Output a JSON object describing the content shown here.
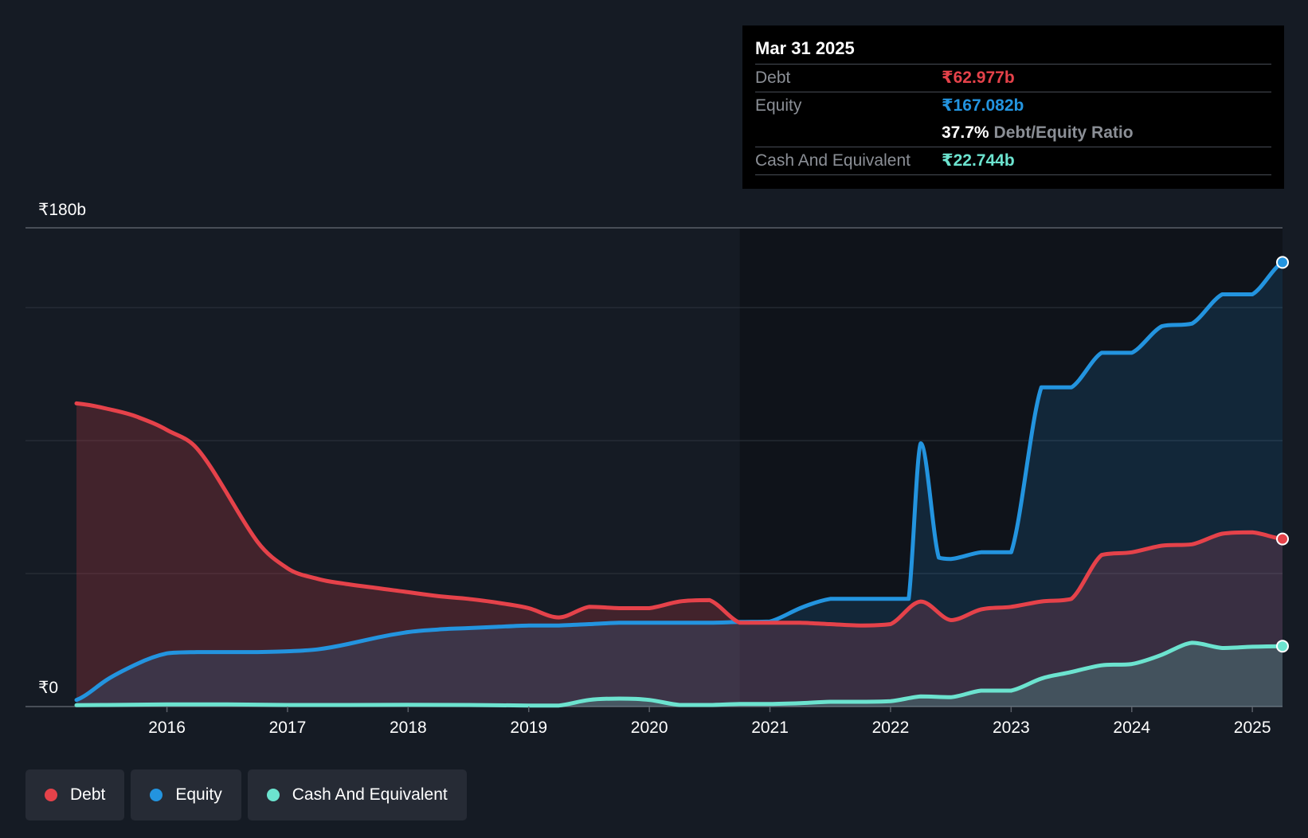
{
  "colors": {
    "background": "#151b24",
    "debt": "#e5424a",
    "equity": "#2394df",
    "cash": "#6ce3cf",
    "grid": "#2e343d",
    "axis_text": "#ffffff"
  },
  "tooltip": {
    "date": "Mar 31 2025",
    "debt_label": "Debt",
    "debt_value": "₹62.977b",
    "equity_label": "Equity",
    "equity_value": "₹167.082b",
    "ratio_value": "37.7%",
    "ratio_label": "Debt/Equity Ratio",
    "cash_label": "Cash And Equivalent",
    "cash_value": "₹22.744b"
  },
  "legend": {
    "debt": "Debt",
    "equity": "Equity",
    "cash": "Cash And Equivalent"
  },
  "chart_data": {
    "type": "area",
    "title": "",
    "xlabel": "",
    "ylabel": "",
    "ylim": [
      0,
      180
    ],
    "xlim": [
      2015.25,
      2025.25
    ],
    "y_axis_labels": [
      {
        "value": 180,
        "label": "₹180b"
      },
      {
        "value": 0,
        "label": "₹0"
      }
    ],
    "gridlines": [
      180,
      150,
      100,
      50,
      0
    ],
    "x_ticks": [
      2016,
      2017,
      2018,
      2019,
      2020,
      2021,
      2022,
      2023,
      2024,
      2025
    ],
    "x_tick_labels": [
      "2016",
      "2017",
      "2018",
      "2019",
      "2020",
      "2021",
      "2022",
      "2023",
      "2024",
      "2025"
    ],
    "forecast_start": 2020.75,
    "series": [
      {
        "name": "Debt",
        "key": "debt",
        "x": [
          2015.25,
          2015.5,
          2015.75,
          2016.0,
          2016.25,
          2016.5,
          2016.75,
          2017.0,
          2017.25,
          2017.5,
          2017.75,
          2018.0,
          2018.25,
          2018.5,
          2018.75,
          2019.0,
          2019.25,
          2019.5,
          2019.75,
          2020.0,
          2020.25,
          2020.5,
          2020.75,
          2021.0,
          2021.25,
          2021.5,
          2021.75,
          2022.0,
          2022.25,
          2022.5,
          2022.75,
          2023.0,
          2023.25,
          2023.5,
          2023.75,
          2024.0,
          2024.25,
          2024.5,
          2024.75,
          2025.0,
          2025.25
        ],
        "values": [
          114,
          112,
          109,
          104,
          97,
          80,
          62,
          52,
          48,
          46,
          44.5,
          43,
          41.5,
          40.5,
          39,
          37,
          33.5,
          37.5,
          37,
          37,
          39.5,
          40,
          31.5,
          31.5,
          31.5,
          31,
          30.5,
          31,
          39.5,
          32.5,
          36.5,
          37.5,
          39.5,
          40.5,
          57,
          58,
          60.5,
          61,
          65,
          65.5,
          63
        ]
      },
      {
        "name": "Equity",
        "key": "equity",
        "x": [
          2015.25,
          2015.5,
          2015.75,
          2016.0,
          2016.25,
          2016.5,
          2016.75,
          2017.0,
          2017.25,
          2017.5,
          2017.75,
          2018.0,
          2018.25,
          2018.5,
          2018.75,
          2019.0,
          2019.25,
          2019.5,
          2019.75,
          2020.0,
          2020.25,
          2020.5,
          2020.75,
          2021.0,
          2021.25,
          2021.5,
          2021.75,
          2022.0,
          2022.15,
          2022.25,
          2022.4,
          2022.5,
          2022.75,
          2023.0,
          2023.25,
          2023.5,
          2023.75,
          2024.0,
          2024.25,
          2024.5,
          2024.75,
          2025.0,
          2025.25
        ],
        "values": [
          2.5,
          10,
          16,
          20,
          20.5,
          20.5,
          20.5,
          20.8,
          21.5,
          23.5,
          26,
          28,
          29,
          29.5,
          30,
          30.5,
          30.5,
          31,
          31.5,
          31.5,
          31.5,
          31.5,
          31.8,
          32,
          37,
          40.5,
          40.5,
          40.5,
          40.5,
          99,
          56,
          55.5,
          58,
          58,
          120,
          120,
          133,
          133,
          143,
          144,
          155,
          155,
          167
        ]
      },
      {
        "name": "Cash And Equivalent",
        "key": "cash",
        "x": [
          2015.25,
          2015.5,
          2016.0,
          2016.5,
          2017.0,
          2017.5,
          2018.0,
          2018.5,
          2019.0,
          2019.25,
          2019.5,
          2019.75,
          2020.0,
          2020.25,
          2020.5,
          2020.75,
          2021.0,
          2021.25,
          2021.5,
          2021.75,
          2022.0,
          2022.25,
          2022.5,
          2022.75,
          2023.0,
          2023.25,
          2023.5,
          2023.75,
          2024.0,
          2024.25,
          2024.5,
          2024.75,
          2025.0,
          2025.25
        ],
        "values": [
          0.5,
          0.6,
          0.8,
          0.8,
          0.6,
          0.6,
          0.7,
          0.6,
          0.4,
          0.4,
          2.5,
          3,
          2.5,
          0.6,
          0.6,
          1,
          1,
          1.3,
          1.8,
          1.8,
          2,
          3.8,
          3.5,
          6,
          6,
          10.5,
          13,
          15.5,
          16,
          19.5,
          24,
          22,
          22.5,
          22.7
        ]
      }
    ]
  }
}
